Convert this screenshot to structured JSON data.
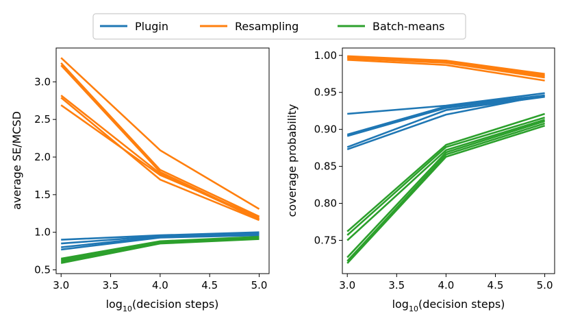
{
  "colors": {
    "plugin": "#1f77b4",
    "resampling": "#ff7f0e",
    "batch": "#2ca02c"
  },
  "legend": [
    {
      "label": "Plugin",
      "color": "#1f77b4"
    },
    {
      "label": "Resampling",
      "color": "#ff7f0e"
    },
    {
      "label": "Batch-means",
      "color": "#2ca02c"
    }
  ],
  "chart_data": [
    {
      "type": "line",
      "title": "",
      "xlabel_main": "log",
      "xlabel_sub": "10",
      "xlabel_rest": "(decision steps)",
      "ylabel": "average SE/MCSD",
      "x": [
        3.0,
        4.0,
        5.0
      ],
      "xlim": [
        2.95,
        5.1
      ],
      "ylim": [
        0.45,
        3.45
      ],
      "xticks": [
        "3.0",
        "3.5",
        "4.0",
        "4.5",
        "5.0"
      ],
      "xtick_values": [
        3.0,
        3.5,
        4.0,
        4.5,
        5.0
      ],
      "yticks": [
        "0.5",
        "1.0",
        "1.5",
        "2.0",
        "2.5",
        "3.0"
      ],
      "ytick_values": [
        0.5,
        1.0,
        1.5,
        2.0,
        2.5,
        3.0
      ],
      "series": [
        {
          "name": "Resampling",
          "group": "resampling",
          "values": [
            3.32,
            2.09,
            1.31
          ]
        },
        {
          "name": "Resampling",
          "group": "resampling",
          "values": [
            3.25,
            1.83,
            1.21
          ]
        },
        {
          "name": "Resampling",
          "group": "resampling",
          "values": [
            3.22,
            1.8,
            1.18
          ]
        },
        {
          "name": "Resampling",
          "group": "resampling",
          "values": [
            2.82,
            1.78,
            1.17
          ]
        },
        {
          "name": "Resampling",
          "group": "resampling",
          "values": [
            2.79,
            1.7,
            1.16
          ]
        },
        {
          "name": "Resampling",
          "group": "resampling",
          "values": [
            2.69,
            1.76,
            1.2
          ]
        },
        {
          "name": "Plugin",
          "group": "plugin",
          "values": [
            0.9,
            0.96,
            1.0
          ]
        },
        {
          "name": "Plugin",
          "group": "plugin",
          "values": [
            0.85,
            0.95,
            0.99
          ]
        },
        {
          "name": "Plugin",
          "group": "plugin",
          "values": [
            0.8,
            0.94,
            0.98
          ]
        },
        {
          "name": "Plugin",
          "group": "plugin",
          "values": [
            0.77,
            0.93,
            0.96
          ]
        },
        {
          "name": "Batch-means",
          "group": "batch",
          "values": [
            0.65,
            0.88,
            0.94
          ]
        },
        {
          "name": "Batch-means",
          "group": "batch",
          "values": [
            0.63,
            0.87,
            0.93
          ]
        },
        {
          "name": "Batch-means",
          "group": "batch",
          "values": [
            0.61,
            0.86,
            0.92
          ]
        },
        {
          "name": "Batch-means",
          "group": "batch",
          "values": [
            0.59,
            0.85,
            0.91
          ]
        }
      ]
    },
    {
      "type": "line",
      "title": "",
      "xlabel_main": "log",
      "xlabel_sub": "10",
      "xlabel_rest": "(decision steps)",
      "ylabel": "coverage probability",
      "x": [
        3.0,
        4.0,
        5.0
      ],
      "xlim": [
        2.95,
        5.1
      ],
      "ylim": [
        0.705,
        1.01
      ],
      "xticks": [
        "3.0",
        "3.5",
        "4.0",
        "4.5",
        "5.0"
      ],
      "xtick_values": [
        3.0,
        3.5,
        4.0,
        4.5,
        5.0
      ],
      "yticks": [
        "0.75",
        "0.80",
        "0.85",
        "0.90",
        "0.95",
        "1.00"
      ],
      "ytick_values": [
        0.75,
        0.8,
        0.85,
        0.9,
        0.95,
        1.0
      ],
      "series": [
        {
          "name": "Resampling",
          "group": "resampling",
          "values": [
            0.999,
            0.993,
            0.975
          ]
        },
        {
          "name": "Resampling",
          "group": "resampling",
          "values": [
            0.998,
            0.992,
            0.973
          ]
        },
        {
          "name": "Resampling",
          "group": "resampling",
          "values": [
            0.997,
            0.991,
            0.972
          ]
        },
        {
          "name": "Resampling",
          "group": "resampling",
          "values": [
            0.996,
            0.99,
            0.97
          ]
        },
        {
          "name": "Resampling",
          "group": "resampling",
          "values": [
            0.994,
            0.987,
            0.966
          ]
        },
        {
          "name": "Plugin",
          "group": "plugin",
          "values": [
            0.921,
            0.932,
            0.949
          ]
        },
        {
          "name": "Plugin",
          "group": "plugin",
          "values": [
            0.893,
            0.931,
            0.946
          ]
        },
        {
          "name": "Plugin",
          "group": "plugin",
          "values": [
            0.891,
            0.929,
            0.945
          ]
        },
        {
          "name": "Plugin",
          "group": "plugin",
          "values": [
            0.876,
            0.926,
            0.944
          ]
        },
        {
          "name": "Plugin",
          "group": "plugin",
          "values": [
            0.873,
            0.92,
            0.946
          ]
        },
        {
          "name": "Batch-means",
          "group": "batch",
          "values": [
            0.762,
            0.879,
            0.921
          ]
        },
        {
          "name": "Batch-means",
          "group": "batch",
          "values": [
            0.757,
            0.876,
            0.916
          ]
        },
        {
          "name": "Batch-means",
          "group": "batch",
          "values": [
            0.75,
            0.872,
            0.913
          ]
        },
        {
          "name": "Batch-means",
          "group": "batch",
          "values": [
            0.727,
            0.869,
            0.911
          ]
        },
        {
          "name": "Batch-means",
          "group": "batch",
          "values": [
            0.722,
            0.866,
            0.908
          ]
        },
        {
          "name": "Batch-means",
          "group": "batch",
          "values": [
            0.719,
            0.863,
            0.905
          ]
        }
      ]
    }
  ]
}
